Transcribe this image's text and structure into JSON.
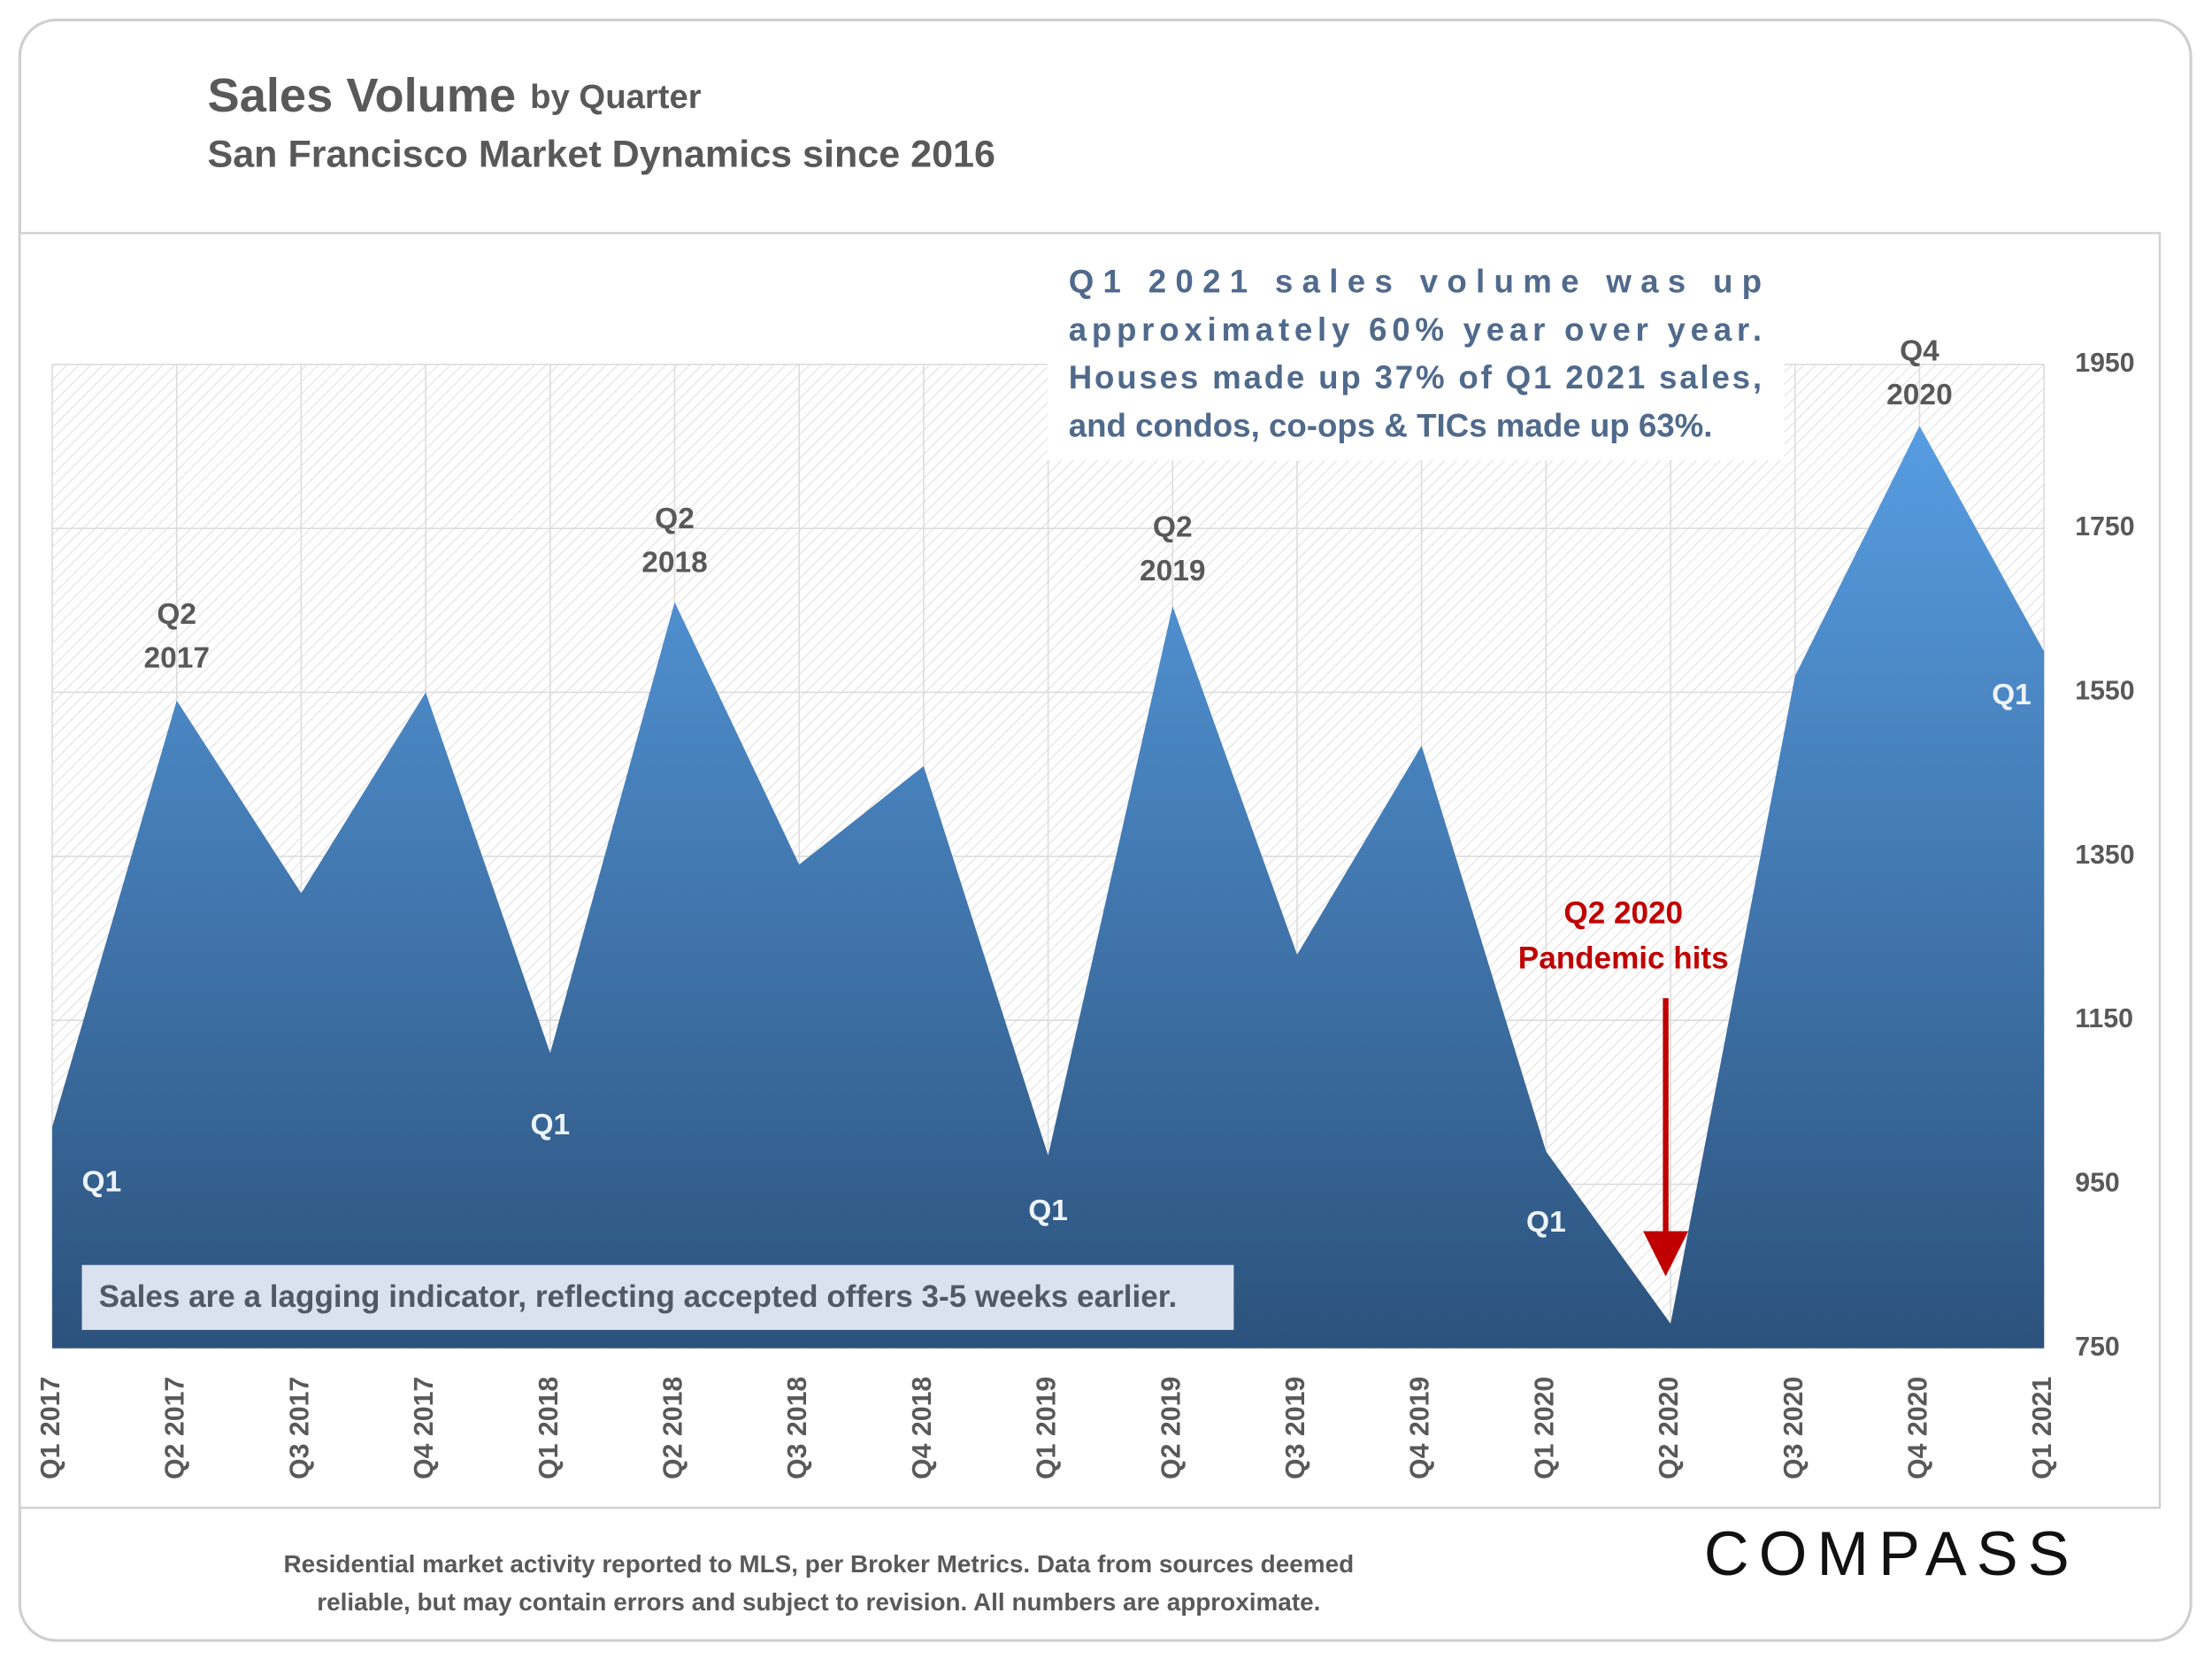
{
  "chart_data": {
    "type": "area",
    "title": "Sales Volume",
    "title_suffix": "by Quarter",
    "subtitle": "San Francisco Market Dynamics since 2016",
    "categories": [
      "Q1 2017",
      "Q2 2017",
      "Q3 2017",
      "Q4 2017",
      "Q1 2018",
      "Q2 2018",
      "Q3 2018",
      "Q4 2018",
      "Q1 2019",
      "Q2 2019",
      "Q3 2019",
      "Q4 2019",
      "Q1 2020",
      "Q2 2020",
      "Q3 2020",
      "Q4 2020",
      "Q1 2021"
    ],
    "values": [
      1020,
      1540,
      1305,
      1550,
      1110,
      1660,
      1340,
      1460,
      985,
      1655,
      1230,
      1485,
      990,
      780,
      1570,
      1875,
      1600
    ],
    "gradient": [
      "#579de2",
      "#2c527c"
    ],
    "ylim": [
      750,
      1950
    ],
    "yticks": [
      750,
      950,
      1150,
      1350,
      1550,
      1750,
      1950
    ],
    "y_axis_side": "right",
    "grid": true,
    "point_labels": [
      [
        "Q1"
      ],
      [
        "Q2",
        "2017"
      ],
      null,
      null,
      [
        "Q1"
      ],
      [
        "Q2",
        "2018"
      ],
      null,
      null,
      [
        "Q1"
      ],
      [
        "Q2",
        "2019"
      ],
      null,
      null,
      [
        "Q1"
      ],
      null,
      null,
      [
        "Q4",
        "2020"
      ],
      [
        "Q1"
      ]
    ],
    "callout": [
      "Q1 2021 sales volume was up",
      "approximately 60% year over year.",
      "Houses made up 37% of Q1 2021 sales,",
      "and condos, co-ops & TICs made up 63%."
    ],
    "pandemic_note": [
      "Q2 2020",
      "Pandemic hits"
    ],
    "lag_note": "Sales are a lagging indicator, reflecting accepted offers 3-5 weeks earlier.",
    "footer": [
      "Residential market activity reported to MLS, per Broker Metrics. Data from sources deemed",
      "reliable, but may contain errors and subject to revision. All numbers are approximate."
    ],
    "logo": "COMPASS"
  }
}
